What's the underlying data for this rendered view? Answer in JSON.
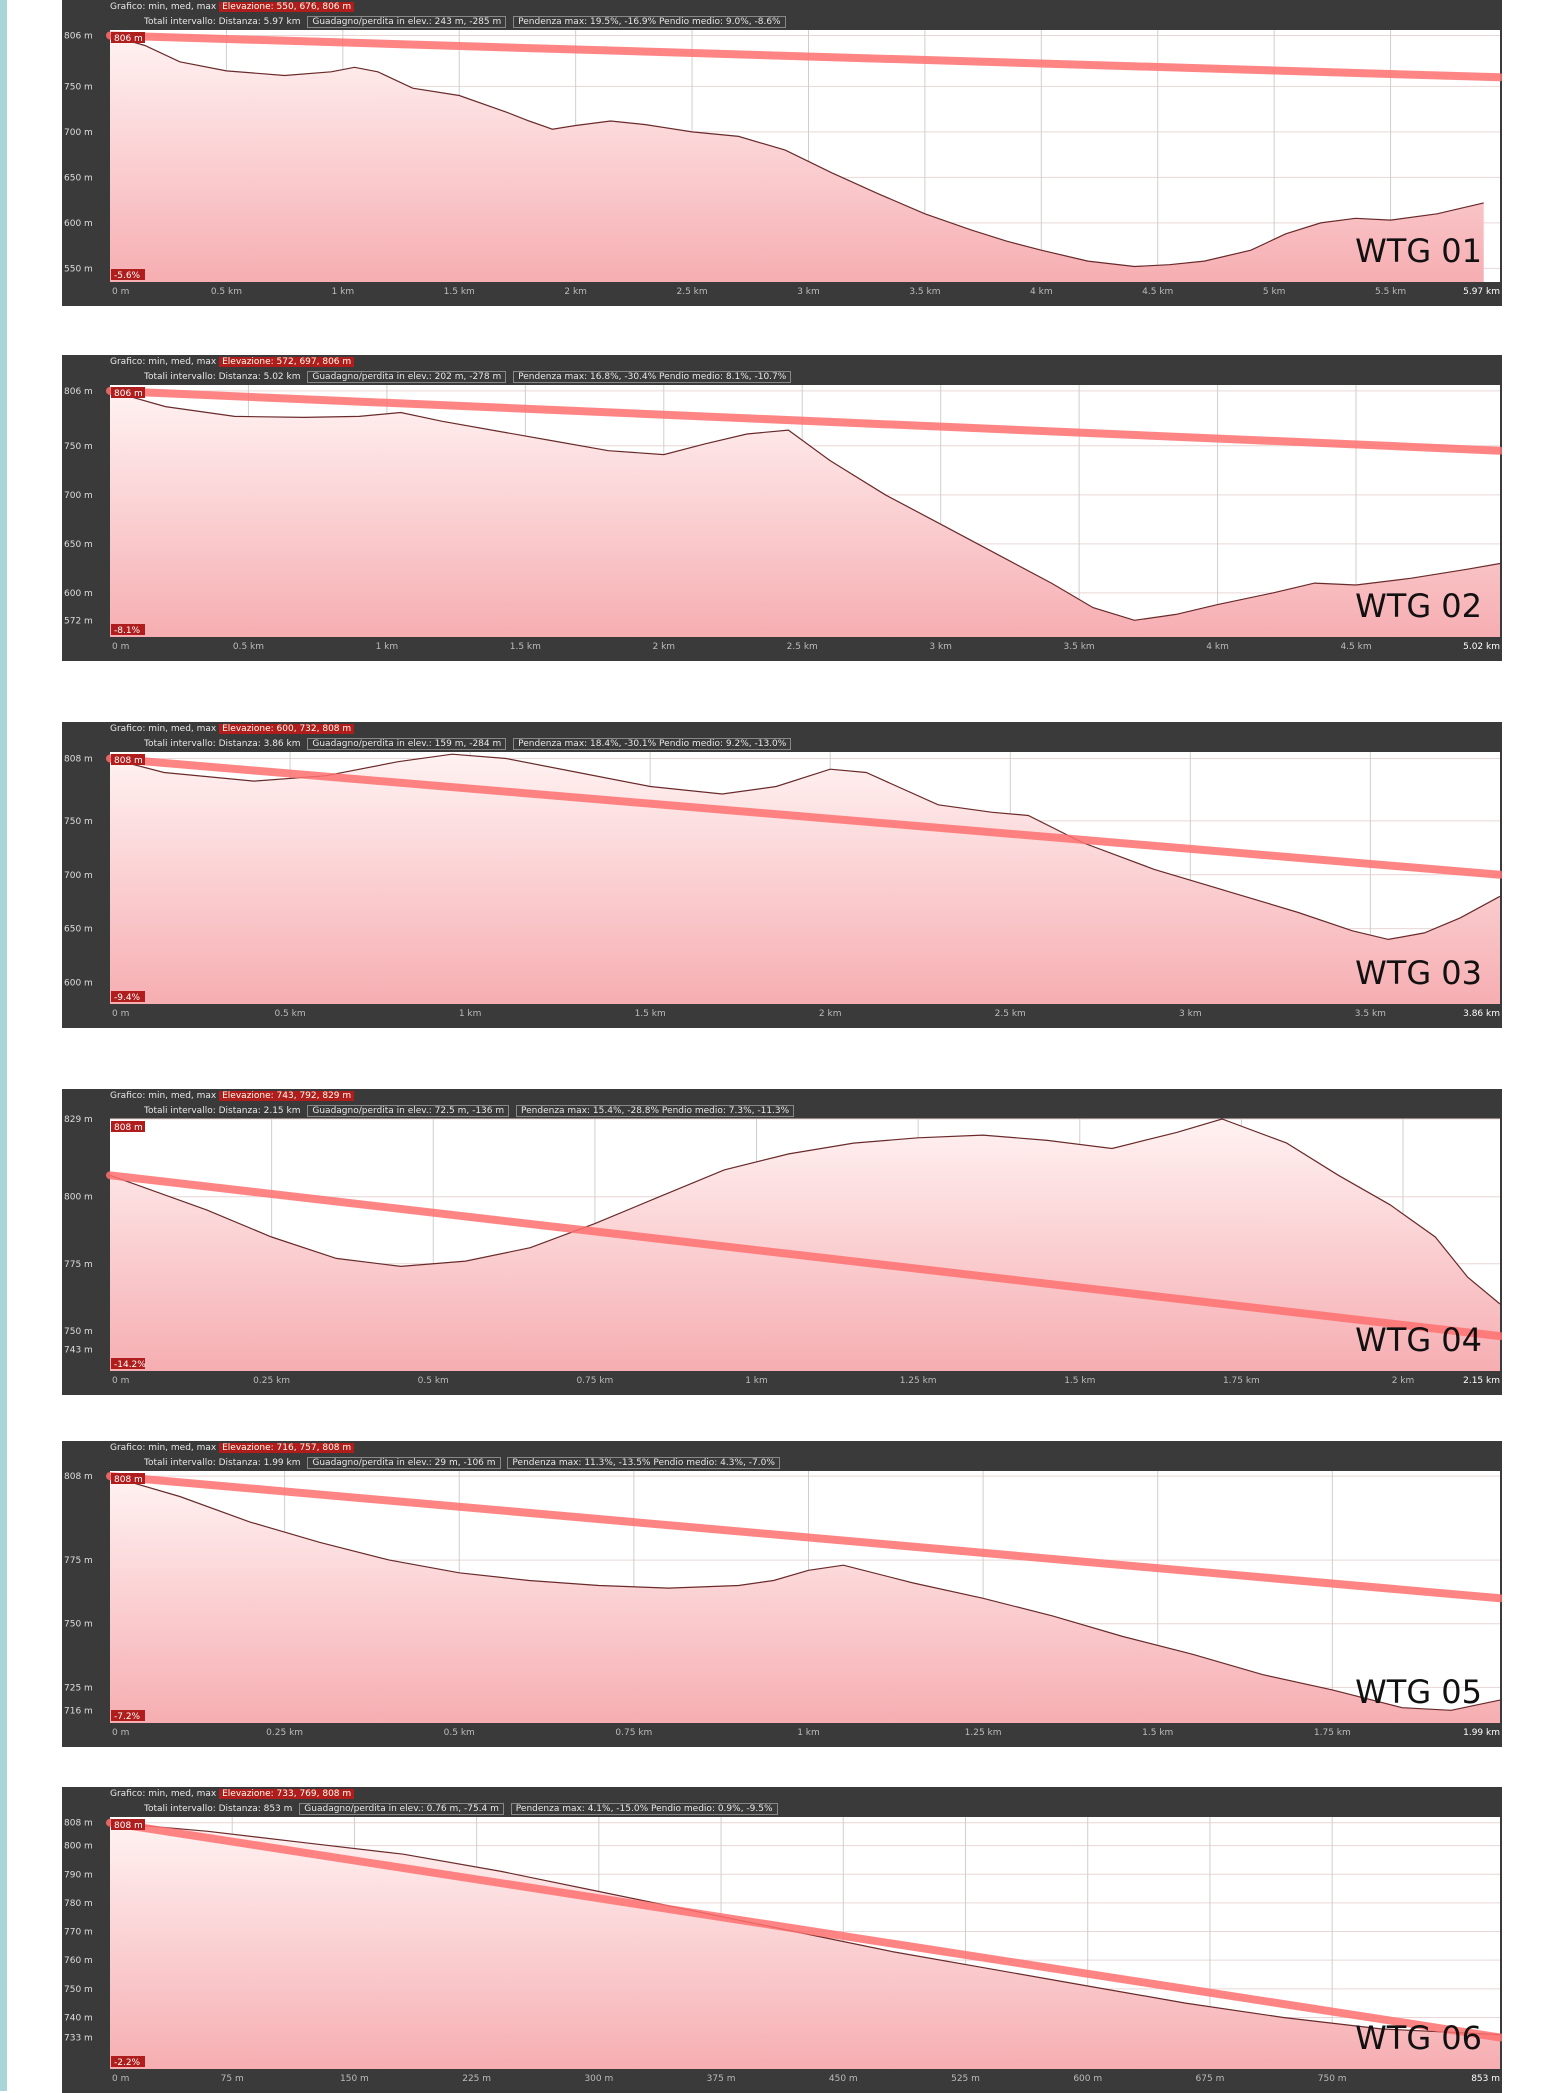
{
  "colors": {
    "fill_top": "#fff2f2",
    "fill_bottom": "#f6aeb2",
    "trend": "#ff7070",
    "panel_bg": "#3a3a3a",
    "tag_bg": "#b01d1d"
  },
  "chart_data": [
    {
      "type": "area",
      "label": "WTG 01",
      "header": {
        "line1_prefix": "Grafico: min, med, max",
        "line1_tag": "Elevazione: 550, 676, 806 m",
        "line2_prefix": "Totali intervallo:",
        "distance": "Distanza: 5.97 km",
        "gain_loss": "Guadagno/perdita in elev.: 243 m, -285 m",
        "slope": "Pendenza max: 19.5%, -16.9% Pendio medio: 9.0%, -8.6%"
      },
      "start_tag": "806 m",
      "slope_tag": "-5.6%",
      "x_max": 5.97,
      "ylim": [
        535,
        812
      ],
      "y_ticks": [
        550,
        600,
        650,
        700,
        750,
        806
      ],
      "y_tick_labels": [
        "550 m",
        "600 m",
        "650 m",
        "700 m",
        "750 m",
        "806 m"
      ],
      "x_ticks": [
        0,
        0.5,
        1,
        1.5,
        2,
        2.5,
        3,
        3.5,
        4,
        4.5,
        5,
        5.5,
        5.97
      ],
      "x_tick_labels": [
        "0 m",
        "0.5 km",
        "1 km",
        "1.5 km",
        "2 km",
        "2.5 km",
        "3 km",
        "3.5 km",
        "4 km",
        "4.5 km",
        "5 km",
        "5.5 km",
        "5.97 km"
      ],
      "profile": [
        [
          0,
          806
        ],
        [
          0.15,
          795
        ],
        [
          0.3,
          777
        ],
        [
          0.5,
          767
        ],
        [
          0.75,
          762
        ],
        [
          0.95,
          766
        ],
        [
          1.05,
          771
        ],
        [
          1.15,
          766
        ],
        [
          1.3,
          748
        ],
        [
          1.5,
          740
        ],
        [
          1.7,
          722
        ],
        [
          1.8,
          712
        ],
        [
          1.9,
          703
        ],
        [
          2.0,
          707
        ],
        [
          2.15,
          712
        ],
        [
          2.3,
          708
        ],
        [
          2.5,
          700
        ],
        [
          2.7,
          695
        ],
        [
          2.9,
          680
        ],
        [
          3.1,
          655
        ],
        [
          3.3,
          632
        ],
        [
          3.5,
          610
        ],
        [
          3.7,
          592
        ],
        [
          3.85,
          580
        ],
        [
          4.0,
          570
        ],
        [
          4.2,
          558
        ],
        [
          4.4,
          552
        ],
        [
          4.55,
          554
        ],
        [
          4.7,
          558
        ],
        [
          4.9,
          570
        ],
        [
          5.05,
          588
        ],
        [
          5.2,
          600
        ],
        [
          5.35,
          605
        ],
        [
          5.5,
          603
        ],
        [
          5.7,
          610
        ],
        [
          5.9,
          622
        ]
      ],
      "trend": [
        [
          0,
          806
        ],
        [
          5.97,
          760
        ]
      ]
    },
    {
      "type": "area",
      "label": "WTG 02",
      "header": {
        "line1_prefix": "Grafico: min, med, max",
        "line1_tag": "Elevazione: 572, 697, 806 m",
        "line2_prefix": "Totali intervallo:",
        "distance": "Distanza: 5.02 km",
        "gain_loss": "Guadagno/perdita in elev.: 202 m, -278 m",
        "slope": "Pendenza max: 16.8%, -30.4% Pendio medio: 8.1%, -10.7%"
      },
      "start_tag": "806 m",
      "slope_tag": "-8.1%",
      "x_max": 5.02,
      "ylim": [
        555,
        812
      ],
      "y_ticks": [
        572,
        600,
        650,
        700,
        750,
        806
      ],
      "y_tick_labels": [
        "572 m",
        "600 m",
        "650 m",
        "700 m",
        "750 m",
        "806 m"
      ],
      "x_ticks": [
        0,
        0.5,
        1,
        1.5,
        2,
        2.5,
        3,
        3.5,
        4,
        4.5,
        5.02
      ],
      "x_tick_labels": [
        "0 m",
        "0.5 km",
        "1 km",
        "1.5 km",
        "2 km",
        "2.5 km",
        "3 km",
        "3.5 km",
        "4 km",
        "4.5 km",
        "5.02 km"
      ],
      "profile": [
        [
          0,
          806
        ],
        [
          0.2,
          790
        ],
        [
          0.45,
          780
        ],
        [
          0.7,
          779
        ],
        [
          0.9,
          780
        ],
        [
          1.05,
          784
        ],
        [
          1.2,
          775
        ],
        [
          1.4,
          765
        ],
        [
          1.6,
          755
        ],
        [
          1.8,
          745
        ],
        [
          2.0,
          741
        ],
        [
          2.15,
          752
        ],
        [
          2.3,
          762
        ],
        [
          2.45,
          766
        ],
        [
          2.6,
          735
        ],
        [
          2.8,
          700
        ],
        [
          3.0,
          670
        ],
        [
          3.2,
          640
        ],
        [
          3.4,
          610
        ],
        [
          3.55,
          585
        ],
        [
          3.7,
          572
        ],
        [
          3.85,
          578
        ],
        [
          4.0,
          588
        ],
        [
          4.2,
          600
        ],
        [
          4.35,
          610
        ],
        [
          4.5,
          608
        ],
        [
          4.7,
          615
        ],
        [
          4.9,
          624
        ],
        [
          5.02,
          630
        ]
      ],
      "trend": [
        [
          0,
          806
        ],
        [
          5.02,
          745
        ]
      ]
    },
    {
      "type": "area",
      "label": "WTG 03",
      "header": {
        "line1_prefix": "Grafico: min, med, max",
        "line1_tag": "Elevazione: 600, 732, 808 m",
        "line2_prefix": "Totali intervallo:",
        "distance": "Distanza: 3.86 km",
        "gain_loss": "Guadagno/perdita in elev.: 159 m, -284 m",
        "slope": "Pendenza max: 18.4%, -30.1% Pendio medio: 9.2%, -13.0%"
      },
      "start_tag": "808 m",
      "slope_tag": "-9.4%",
      "x_max": 3.86,
      "ylim": [
        580,
        814
      ],
      "y_ticks": [
        600,
        650,
        700,
        750,
        808
      ],
      "y_tick_labels": [
        "600 m",
        "650 m",
        "700 m",
        "750 m",
        "808 m"
      ],
      "x_ticks": [
        0,
        0.5,
        1,
        1.5,
        2,
        2.5,
        3,
        3.5,
        3.86
      ],
      "x_tick_labels": [
        "0 m",
        "0.5 km",
        "1 km",
        "1.5 km",
        "2 km",
        "2.5 km",
        "3 km",
        "3.5 km",
        "3.86 km"
      ],
      "profile": [
        [
          0,
          808
        ],
        [
          0.15,
          795
        ],
        [
          0.4,
          787
        ],
        [
          0.6,
          792
        ],
        [
          0.8,
          805
        ],
        [
          0.95,
          812
        ],
        [
          1.1,
          808
        ],
        [
          1.3,
          795
        ],
        [
          1.5,
          782
        ],
        [
          1.7,
          775
        ],
        [
          1.85,
          782
        ],
        [
          2.0,
          798
        ],
        [
          2.1,
          795
        ],
        [
          2.3,
          765
        ],
        [
          2.45,
          758
        ],
        [
          2.55,
          755
        ],
        [
          2.7,
          730
        ],
        [
          2.9,
          705
        ],
        [
          3.1,
          685
        ],
        [
          3.3,
          665
        ],
        [
          3.45,
          648
        ],
        [
          3.55,
          640
        ],
        [
          3.65,
          646
        ],
        [
          3.75,
          660
        ],
        [
          3.86,
          680
        ]
      ],
      "trend": [
        [
          0,
          808
        ],
        [
          3.86,
          700
        ]
      ]
    },
    {
      "type": "area",
      "label": "WTG 04",
      "header": {
        "line1_prefix": "Grafico: min, med, max",
        "line1_tag": "Elevazione: 743, 792, 829 m",
        "line2_prefix": "Totali intervallo:",
        "distance": "Distanza: 2.15 km",
        "gain_loss": "Guadagno/perdita in elev.: 72.5 m, -136 m",
        "slope": "Pendenza max: 15.4%, -28.8% Pendio medio: 7.3%, -11.3%"
      },
      "start_tag": "808 m",
      "slope_tag": "-14.2%",
      "x_max": 2.15,
      "ylim": [
        735,
        829
      ],
      "y_ticks": [
        743,
        750,
        775,
        800,
        829
      ],
      "y_tick_labels": [
        "743 m",
        "750 m",
        "775 m",
        "800 m",
        "829 m"
      ],
      "x_ticks": [
        0,
        0.25,
        0.5,
        0.75,
        1,
        1.25,
        1.5,
        1.75,
        2,
        2.15
      ],
      "x_tick_labels": [
        "0 m",
        "0.25 km",
        "0.5 km",
        "0.75 km",
        "1 km",
        "1.25 km",
        "1.5 km",
        "1.75 km",
        "2 km",
        "2.15 km"
      ],
      "profile": [
        [
          0,
          808
        ],
        [
          0.15,
          795
        ],
        [
          0.25,
          785
        ],
        [
          0.35,
          777
        ],
        [
          0.45,
          774
        ],
        [
          0.55,
          776
        ],
        [
          0.65,
          781
        ],
        [
          0.75,
          790
        ],
        [
          0.85,
          800
        ],
        [
          0.95,
          810
        ],
        [
          1.05,
          816
        ],
        [
          1.15,
          820
        ],
        [
          1.25,
          822
        ],
        [
          1.35,
          823
        ],
        [
          1.45,
          821
        ],
        [
          1.55,
          818
        ],
        [
          1.65,
          824
        ],
        [
          1.72,
          829
        ],
        [
          1.82,
          820
        ],
        [
          1.9,
          808
        ],
        [
          1.98,
          797
        ],
        [
          2.05,
          785
        ],
        [
          2.1,
          770
        ],
        [
          2.15,
          760
        ]
      ],
      "trend": [
        [
          0,
          808
        ],
        [
          2.15,
          748
        ]
      ]
    },
    {
      "type": "area",
      "label": "WTG 05",
      "header": {
        "line1_prefix": "Grafico: min, med, max",
        "line1_tag": "Elevazione: 716, 757, 808 m",
        "line2_prefix": "Totali intervallo:",
        "distance": "Distanza: 1.99 km",
        "gain_loss": "Guadagno/perdita in elev.: 29 m, -106 m",
        "slope": "Pendenza max: 11.3%, -13.5% Pendio medio: 4.3%, -7.0%"
      },
      "start_tag": "808 m",
      "slope_tag": "-7.2%",
      "x_max": 1.99,
      "ylim": [
        711,
        810
      ],
      "y_ticks": [
        716,
        725,
        750,
        775,
        808
      ],
      "y_tick_labels": [
        "716 m",
        "725 m",
        "750 m",
        "775 m",
        "808 m"
      ],
      "x_ticks": [
        0,
        0.25,
        0.5,
        0.75,
        1,
        1.25,
        1.5,
        1.75,
        1.99
      ],
      "x_tick_labels": [
        "0 m",
        "0.25 km",
        "0.5 km",
        "0.75 km",
        "1 km",
        "1.25 km",
        "1.5 km",
        "1.75 km",
        "1.99 km"
      ],
      "profile": [
        [
          0,
          808
        ],
        [
          0.1,
          800
        ],
        [
          0.2,
          790
        ],
        [
          0.3,
          782
        ],
        [
          0.4,
          775
        ],
        [
          0.5,
          770
        ],
        [
          0.6,
          767
        ],
        [
          0.7,
          765
        ],
        [
          0.8,
          764
        ],
        [
          0.9,
          765
        ],
        [
          0.95,
          767
        ],
        [
          1.0,
          771
        ],
        [
          1.05,
          773
        ],
        [
          1.15,
          766
        ],
        [
          1.25,
          760
        ],
        [
          1.35,
          753
        ],
        [
          1.45,
          745
        ],
        [
          1.55,
          738
        ],
        [
          1.65,
          730
        ],
        [
          1.75,
          724
        ],
        [
          1.85,
          717
        ],
        [
          1.92,
          716
        ],
        [
          1.99,
          720
        ]
      ],
      "trend": [
        [
          0,
          808
        ],
        [
          1.99,
          760
        ]
      ]
    },
    {
      "type": "area",
      "label": "WTG 06",
      "header": {
        "line1_prefix": "Grafico: min, med, max",
        "line1_tag": "Elevazione: 733, 769, 808 m",
        "line2_prefix": "Totali intervallo:",
        "distance": "Distanza: 853 m",
        "gain_loss": "Guadagno/perdita in elev.: 0.76 m, -75.4 m",
        "slope": "Pendenza max: 4.1%, -15.0% Pendio medio: 0.9%, -9.5%"
      },
      "start_tag": "808 m",
      "slope_tag": "-2.2%",
      "x_max": 853,
      "ylim": [
        722,
        810
      ],
      "y_ticks": [
        733,
        740,
        750,
        760,
        770,
        780,
        790,
        800,
        808
      ],
      "y_tick_labels": [
        "733 m",
        "740 m",
        "750 m",
        "760 m",
        "770 m",
        "780 m",
        "790 m",
        "800 m",
        "808 m"
      ],
      "x_ticks": [
        0,
        75,
        150,
        225,
        300,
        375,
        450,
        525,
        600,
        675,
        750,
        853
      ],
      "x_tick_labels": [
        "0 m",
        "75 m",
        "150 m",
        "225 m",
        "300 m",
        "375 m",
        "450 m",
        "525 m",
        "600 m",
        "675 m",
        "750 m",
        "853 m"
      ],
      "profile": [
        [
          0,
          808
        ],
        [
          60,
          805
        ],
        [
          120,
          801
        ],
        [
          180,
          797
        ],
        [
          240,
          791
        ],
        [
          300,
          784
        ],
        [
          360,
          777
        ],
        [
          420,
          770
        ],
        [
          480,
          763
        ],
        [
          540,
          757
        ],
        [
          600,
          751
        ],
        [
          660,
          745
        ],
        [
          720,
          740
        ],
        [
          780,
          736
        ],
        [
          853,
          734
        ]
      ],
      "trend": [
        [
          0,
          808
        ],
        [
          853,
          733
        ]
      ]
    }
  ]
}
